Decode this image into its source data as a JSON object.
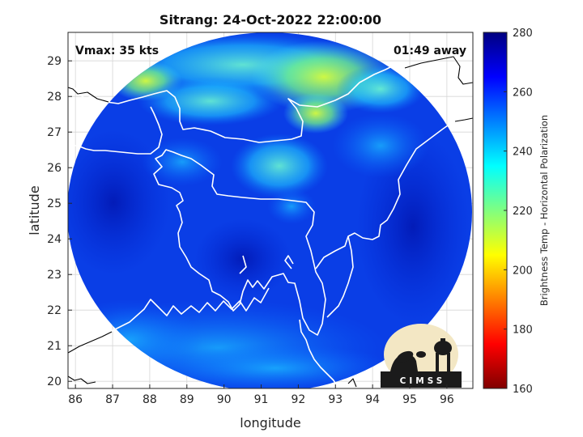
{
  "title": "Sitrang: 24-Oct-2022 22:00:00",
  "annotations": {
    "vmax": "Vmax: 35 kts",
    "away": "01:49 away"
  },
  "x_axis": {
    "label": "longitude",
    "ticks": [
      "86",
      "87",
      "88",
      "89",
      "90",
      "91",
      "92",
      "93",
      "94",
      "95",
      "96"
    ]
  },
  "y_axis": {
    "label": "latitude",
    "ticks": [
      "20",
      "21",
      "22",
      "23",
      "24",
      "25",
      "26",
      "27",
      "28",
      "29"
    ]
  },
  "colorbar": {
    "label": "Brightness Temp - Horizontal Polarization",
    "ticks": [
      "160",
      "180",
      "200",
      "220",
      "240",
      "260",
      "280"
    ],
    "range": [
      160,
      280
    ],
    "colors": [
      "#800000",
      "#ff0000",
      "#ff8000",
      "#ffff00",
      "#80ff80",
      "#00ffff",
      "#0080ff",
      "#0000ff",
      "#000080"
    ]
  },
  "logo": {
    "text": "CIMSS"
  },
  "map_extent": {
    "lon": [
      85.8,
      96.7
    ],
    "lat": [
      19.8,
      29.8
    ]
  }
}
